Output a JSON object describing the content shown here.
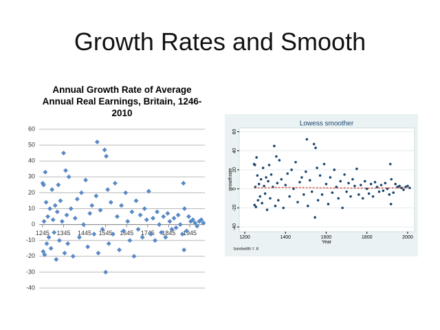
{
  "slide_title": "Growth Rates and Smooth",
  "chart_data": [
    {
      "type": "scatter",
      "title": "Annual Growth Rate of Average Annual Real Earnings, Britain, 1246-2010",
      "color": "#5a8ac6",
      "marker": "diamond",
      "grid": true,
      "xlim": [
        1229,
        2017
      ],
      "xticks": [
        1245,
        1345,
        1445,
        1545,
        1645,
        1745,
        1845,
        1945
      ],
      "ylim": [
        -40,
        60
      ],
      "yticks": [
        -40,
        -30,
        -20,
        -10,
        0,
        10,
        20,
        30,
        40,
        50,
        60
      ],
      "x": [
        1246,
        1248,
        1250,
        1252,
        1255,
        1258,
        1262,
        1265,
        1270,
        1275,
        1280,
        1285,
        1290,
        1295,
        1300,
        1305,
        1310,
        1315,
        1320,
        1325,
        1330,
        1338,
        1345,
        1350,
        1355,
        1360,
        1365,
        1370,
        1380,
        1390,
        1400,
        1410,
        1420,
        1430,
        1440,
        1450,
        1460,
        1470,
        1480,
        1490,
        1500,
        1505,
        1510,
        1520,
        1530,
        1540,
        1545,
        1548,
        1555,
        1560,
        1570,
        1580,
        1590,
        1600,
        1610,
        1620,
        1630,
        1640,
        1650,
        1660,
        1670,
        1680,
        1690,
        1700,
        1710,
        1720,
        1730,
        1740,
        1750,
        1760,
        1770,
        1780,
        1790,
        1800,
        1810,
        1820,
        1830,
        1840,
        1850,
        1860,
        1870,
        1880,
        1890,
        1900,
        1910,
        1915,
        1918,
        1920,
        1930,
        1940,
        1950,
        1960,
        1970,
        1980,
        1990,
        2000,
        2010
      ],
      "values": [
        26,
        -17,
        25,
        2,
        -19,
        33,
        14,
        -12,
        5,
        -8,
        10,
        -15,
        22,
        3,
        -5,
        12,
        -22,
        8,
        25,
        -10,
        15,
        2,
        45,
        -18,
        34,
        6,
        -12,
        30,
        10,
        -20,
        4,
        16,
        -8,
        20,
        0,
        28,
        -14,
        7,
        12,
        -6,
        18,
        52,
        -18,
        9,
        -3,
        47,
        -30,
        43,
        22,
        -12,
        14,
        -6,
        26,
        5,
        -16,
        12,
        -4,
        20,
        2,
        -10,
        8,
        -20,
        15,
        -3,
        6,
        -8,
        10,
        3,
        21,
        -6,
        4,
        -10,
        8,
        0,
        -5,
        5,
        -8,
        7,
        2,
        -3,
        4,
        -2,
        6,
        0,
        -6,
        26,
        -16,
        10,
        -4,
        5,
        2,
        3,
        1,
        -1,
        2,
        3,
        1
      ]
    },
    {
      "type": "scatter",
      "title": "Lowess smoother",
      "ylabel": "growthrate",
      "xlabel": "Year",
      "note": "bandwidth = .8",
      "color": "#1a476f",
      "marker": "circle",
      "grid": true,
      "xlim": [
        1173,
        2034
      ],
      "xticks": [
        1200,
        1400,
        1600,
        1800,
        2000
      ],
      "ylim": [
        -45,
        64
      ],
      "yticks": [
        -40,
        -20,
        0,
        20,
        40,
        60
      ],
      "x": [
        1246,
        1248,
        1250,
        1252,
        1255,
        1258,
        1262,
        1265,
        1270,
        1275,
        1280,
        1285,
        1290,
        1295,
        1300,
        1305,
        1310,
        1315,
        1320,
        1325,
        1330,
        1338,
        1345,
        1350,
        1355,
        1360,
        1365,
        1370,
        1380,
        1390,
        1400,
        1410,
        1420,
        1430,
        1440,
        1450,
        1460,
        1470,
        1480,
        1490,
        1500,
        1505,
        1510,
        1520,
        1530,
        1540,
        1545,
        1548,
        1555,
        1560,
        1570,
        1580,
        1590,
        1600,
        1610,
        1620,
        1630,
        1640,
        1650,
        1660,
        1670,
        1680,
        1690,
        1700,
        1710,
        1720,
        1730,
        1740,
        1750,
        1760,
        1770,
        1780,
        1790,
        1800,
        1810,
        1820,
        1830,
        1840,
        1850,
        1860,
        1870,
        1880,
        1890,
        1900,
        1910,
        1915,
        1918,
        1920,
        1930,
        1940,
        1950,
        1960,
        1970,
        1980,
        1990,
        2000,
        2010
      ],
      "values": [
        26,
        -17,
        25,
        2,
        -19,
        33,
        14,
        -12,
        5,
        -8,
        10,
        -15,
        22,
        3,
        -5,
        12,
        -22,
        8,
        25,
        -10,
        15,
        2,
        45,
        -18,
        34,
        6,
        -12,
        30,
        10,
        -20,
        4,
        16,
        -8,
        20,
        0,
        28,
        -14,
        7,
        12,
        -6,
        18,
        52,
        -18,
        9,
        -3,
        47,
        -30,
        43,
        22,
        -12,
        14,
        -6,
        26,
        5,
        -16,
        12,
        -4,
        20,
        2,
        -10,
        8,
        -20,
        15,
        -3,
        6,
        -8,
        10,
        3,
        21,
        -6,
        4,
        -10,
        8,
        0,
        -5,
        5,
        -8,
        7,
        2,
        -3,
        4,
        -2,
        6,
        0,
        -6,
        26,
        -16,
        10,
        -4,
        5,
        2,
        3,
        1,
        -1,
        2,
        3,
        1
      ],
      "lowess": {
        "color": "#c0392b",
        "x": [
          1246,
          1400,
          1600,
          1800,
          2010
        ],
        "y": [
          1,
          1.5,
          1,
          0.8,
          1.2
        ]
      }
    }
  ]
}
